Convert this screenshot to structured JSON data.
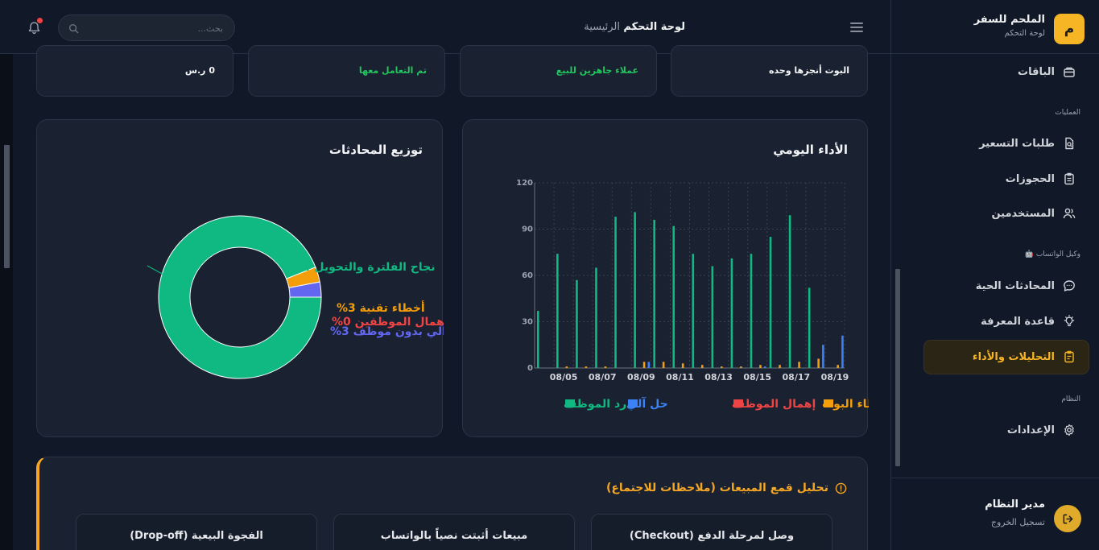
{
  "sidebar": {
    "logo_letter": "م",
    "brand_name": "الملحم للسفر",
    "brand_sub": "لوحة التحكم",
    "items_top": [
      {
        "label": "الباقات",
        "icon": "package-icon"
      }
    ],
    "section_operations": "العمليات",
    "items_operations": [
      {
        "label": "طلبات التسعير",
        "icon": "file-search-icon"
      },
      {
        "label": "الحجوزات",
        "icon": "clipboard-icon"
      },
      {
        "label": "المستخدمين",
        "icon": "users-icon"
      }
    ],
    "section_whatsapp": "وكيل الواتساب",
    "section_whatsapp_emoji": "🤖",
    "items_whatsapp": [
      {
        "label": "المحادثات الحية",
        "icon": "chat-bubble-icon"
      },
      {
        "label": "قاعدة المعرفة",
        "icon": "lightbulb-icon"
      },
      {
        "label": "التحليلات والأداء",
        "icon": "clipboard-list-icon",
        "active": true
      }
    ],
    "section_system": "النظام",
    "items_system": [
      {
        "label": "الإعدادات",
        "icon": "gear-icon"
      }
    ],
    "user_name": "مدير النظام",
    "logout_label": "تسجيل الخروج"
  },
  "header": {
    "breadcrumb_home": "الرئيسية",
    "breadcrumb_sep": "/",
    "breadcrumb_current": "لوحة التحكم",
    "search_placeholder": "بحث..."
  },
  "stat_cards": [
    {
      "label": "البوت أنجزها وحده",
      "color": "#f3f4f6"
    },
    {
      "label": "عملاء جاهزين للبيع",
      "color": "#22c55e"
    },
    {
      "label": "تم التعامل معها",
      "color": "#22c55e"
    },
    {
      "label": "0 ر.س",
      "color": "#f3f4f6"
    }
  ],
  "daily_panel": {
    "title": "الأداء اليومي"
  },
  "distribution_panel": {
    "title": "توزيع المحادثات"
  },
  "chart_data": [
    {
      "type": "bar",
      "title": "الأداء اليومي",
      "x_tick_labels": [
        "08/05",
        "08/07",
        "08/09",
        "08/11",
        "08/13",
        "08/15",
        "08/17",
        "08/19"
      ],
      "categories": [
        "08/04",
        "08/05",
        "08/06",
        "08/07",
        "08/08",
        "08/09",
        "08/10",
        "08/11",
        "08/12",
        "08/13",
        "08/14",
        "08/15",
        "08/16",
        "08/17",
        "08/18",
        "08/19"
      ],
      "ylim": [
        0,
        120
      ],
      "yticks": [
        0,
        30,
        60,
        90,
        120
      ],
      "grid": true,
      "legend_position": "bottom",
      "series": [
        {
          "name": "رد الموظف",
          "color": "#10b981",
          "values": [
            37,
            74,
            57,
            65,
            98,
            101,
            96,
            92,
            74,
            66,
            71,
            74,
            85,
            99,
            52,
            0
          ]
        },
        {
          "name": "حل آلي",
          "color": "#3b82f6",
          "values": [
            0,
            0,
            0,
            0,
            0,
            4,
            0,
            0,
            0,
            0,
            0,
            1,
            0,
            0,
            15,
            21
          ]
        },
        {
          "name": "إهمال الموظف",
          "color": "#ef4444",
          "values": [
            0,
            0,
            0,
            0,
            0,
            0,
            0,
            0,
            0,
            0,
            0,
            0,
            0,
            0,
            0,
            0
          ]
        },
        {
          "name": "أخطاء البوت",
          "color": "#f59e0b",
          "values": [
            0,
            1,
            1,
            1,
            0,
            4,
            4,
            3,
            2,
            1,
            1,
            2,
            2,
            4,
            6,
            2
          ]
        }
      ]
    },
    {
      "type": "pie",
      "variant": "donut",
      "title": "توزيع المحادثات",
      "slices": [
        {
          "label": "نجاح الفلترة والتحويل",
          "value": 94,
          "percent_label": "94%",
          "color": "#10b981"
        },
        {
          "label": "أخطاء تقنية",
          "value": 3,
          "percent_label": "3%",
          "color": "#f59e0b"
        },
        {
          "label": "إهمال الموظفين",
          "value": 0,
          "percent_label": "0%",
          "color": "#ef4444"
        },
        {
          "label": "حل آلي بدون موظف",
          "value": 3,
          "percent_label": "3%",
          "color": "#6366f1"
        }
      ]
    }
  ],
  "analysis": {
    "title": "تحليل قمع المبيعات (ملاحظات للاجتماع)",
    "cards": [
      {
        "label": "وصل لمرحلة الدفع (Checkout)"
      },
      {
        "label": "مبيعات أثبتت نصياً بالواتساب"
      },
      {
        "label": "الفجوة البيعية (Drop-off)"
      }
    ]
  },
  "colors": {
    "accent": "#f5b524",
    "bg": "#111827",
    "card": "#1a2130"
  }
}
